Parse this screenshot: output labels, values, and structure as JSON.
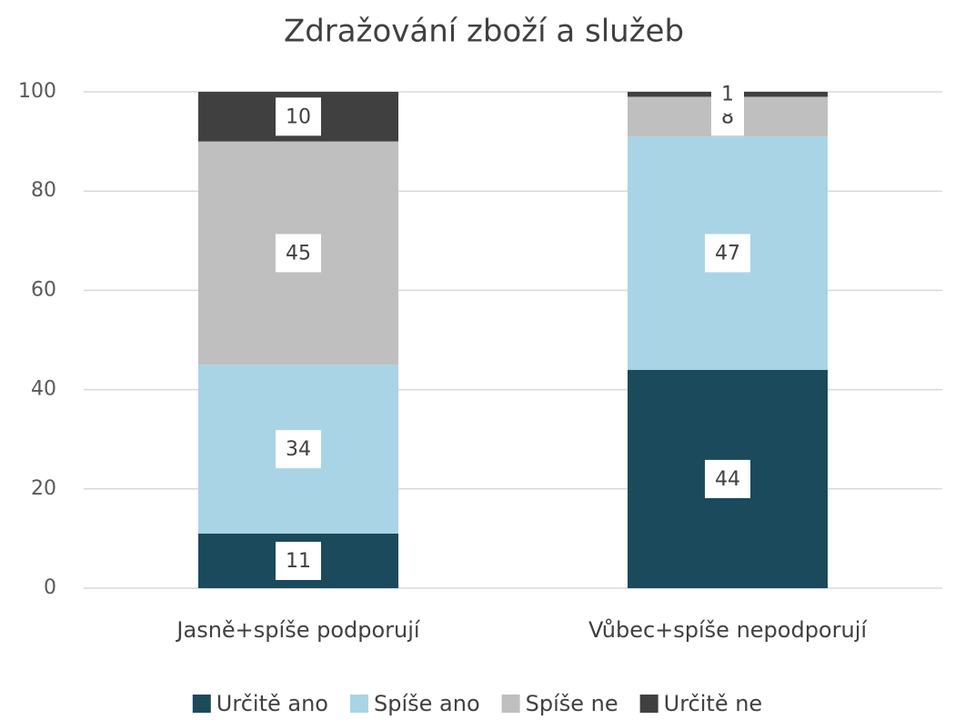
{
  "chart_data": {
    "type": "stacked_bar",
    "title": "Zdražování zboží a služeb",
    "categories": [
      "Jasně+spíše podporují",
      "Vůbec+spíše nepodporují"
    ],
    "series": [
      {
        "name": "Určitě ano",
        "color": "#1b4a5c",
        "values": [
          11,
          44
        ]
      },
      {
        "name": "Spíše ano",
        "color": "#a9d4e6",
        "values": [
          34,
          47
        ]
      },
      {
        "name": "Spíše ne",
        "color": "#bfbfbf",
        "values": [
          45,
          8
        ]
      },
      {
        "name": "Určitě ne",
        "color": "#404040",
        "values": [
          10,
          1
        ]
      }
    ],
    "ylim": [
      0,
      100
    ],
    "yticks": [
      0,
      20,
      40,
      60,
      80,
      100
    ],
    "grid": true,
    "legend": "bottom"
  }
}
